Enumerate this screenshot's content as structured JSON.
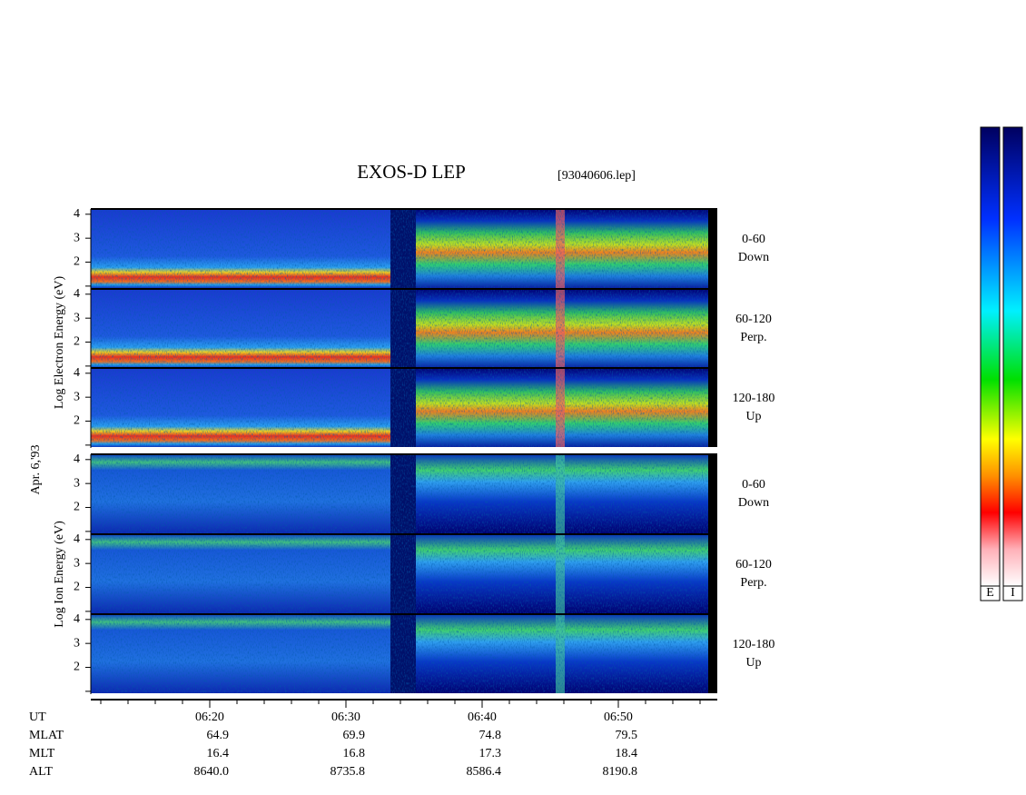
{
  "chart_data": {
    "type": "spectrogram",
    "title": "EXOS-D LEP",
    "subtitle": "[93040606.lep]",
    "date_label": "Apr. 6,'93",
    "electron_axis_label": "Log Electron Energy (eV)",
    "ion_axis_label": "Log Ion Energy (eV)",
    "panels": [
      {
        "species": "electron",
        "label": [
          "0-60",
          "Down"
        ],
        "ylim": [
          0.92,
          4.22
        ],
        "yticks": [
          2,
          3,
          4
        ]
      },
      {
        "species": "electron",
        "label": [
          "60-120",
          "Perp."
        ],
        "ylim": [
          0.92,
          4.22
        ],
        "yticks": [
          2,
          3,
          4
        ]
      },
      {
        "species": "electron",
        "label": [
          "120-180",
          "Up"
        ],
        "ylim": [
          0.92,
          4.22
        ],
        "yticks": [
          2,
          3,
          4
        ]
      },
      {
        "species": "ion",
        "label": [
          "0-60",
          "Down"
        ],
        "ylim": [
          0.92,
          4.22
        ],
        "yticks": [
          2,
          3,
          4
        ]
      },
      {
        "species": "ion",
        "label": [
          "60-120",
          "Perp."
        ],
        "ylim": [
          0.92,
          4.22
        ],
        "yticks": [
          2,
          3,
          4
        ]
      },
      {
        "species": "ion",
        "label": [
          "120-180",
          "Up"
        ],
        "ylim": [
          0.92,
          4.22
        ],
        "yticks": [
          2,
          3,
          4
        ]
      }
    ],
    "ephemeris": {
      "row_labels": [
        "UT",
        "MLAT",
        "MLT",
        "ALT"
      ],
      "columns": [
        [
          "06:20",
          "64.9",
          "16.4",
          "8640.0"
        ],
        [
          "06:30",
          "69.9",
          "16.8",
          "8735.8"
        ],
        [
          "06:40",
          "74.8",
          "17.3",
          "8586.4"
        ],
        [
          "06:50",
          "79.5",
          "18.4",
          "8190.8"
        ]
      ]
    },
    "colorbar_labels": [
      "E",
      "I"
    ]
  }
}
